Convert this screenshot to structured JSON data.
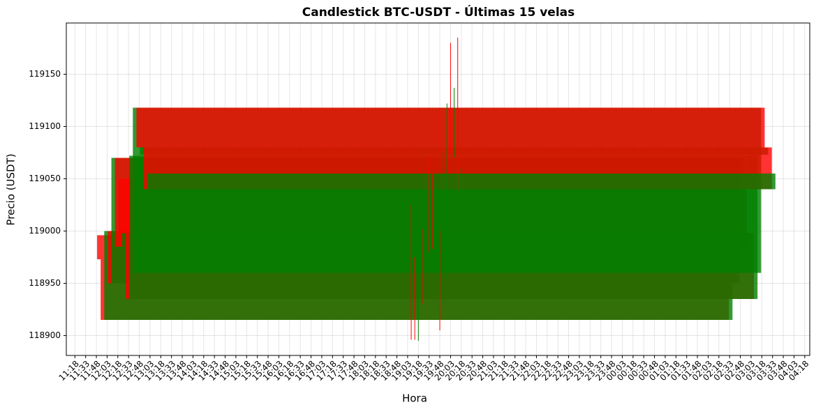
{
  "chart_data": {
    "type": "candlestick",
    "title": "Candlestick BTC-USDT - Últimas 15 velas",
    "xlabel": "Hora",
    "ylabel": "Precio (USDT)",
    "x": [
      "19:08",
      "19:13",
      "19:18",
      "19:23",
      "19:28",
      "19:33",
      "19:38",
      "19:43",
      "19:48",
      "19:53",
      "19:58",
      "20:03",
      "20:08",
      "20:13",
      "20:18"
    ],
    "open": [
      118996,
      118973,
      118915,
      119000,
      118950,
      119070,
      119050,
      118985,
      118998,
      118935,
      118960,
      119118,
      119073,
      119080,
      119040
    ],
    "high": [
      119025,
      118975,
      119002,
      119002,
      119078,
      119072,
      119055,
      119045,
      119000,
      119075,
      119122,
      119180,
      119137,
      119185,
      119060
    ],
    "low": [
      118896,
      118896,
      118895,
      118930,
      118945,
      118980,
      118983,
      118960,
      118905,
      118930,
      118955,
      119075,
      119070,
      119038,
      119038
    ],
    "close": [
      118973,
      118915,
      119000,
      118950,
      119070,
      118985,
      118985,
      118998,
      118935,
      119072,
      119118,
      119080,
      119080,
      119040,
      119055
    ],
    "up_color": "green",
    "down_color": "red",
    "xlim": [
      "11:06",
      "04:25"
    ],
    "xticks": [
      "11:18",
      "11:33",
      "11:48",
      "12:03",
      "12:18",
      "12:33",
      "12:48",
      "13:03",
      "13:18",
      "13:33",
      "13:48",
      "14:03",
      "14:18",
      "14:33",
      "14:48",
      "15:03",
      "15:18",
      "15:33",
      "15:48",
      "16:03",
      "16:18",
      "16:33",
      "16:48",
      "17:03",
      "17:18",
      "17:33",
      "17:48",
      "18:03",
      "18:18",
      "18:33",
      "18:48",
      "19:03",
      "19:18",
      "19:33",
      "19:48",
      "20:03",
      "20:18",
      "20:33",
      "20:48",
      "21:03",
      "21:18",
      "21:33",
      "21:48",
      "22:03",
      "22:18",
      "22:33",
      "22:48",
      "23:03",
      "23:18",
      "23:33",
      "23:48",
      "00:03",
      "00:18",
      "00:33",
      "00:48",
      "01:03",
      "01:18",
      "01:33",
      "01:48",
      "02:03",
      "02:18",
      "02:33",
      "02:48",
      "03:03",
      "03:18",
      "03:33",
      "03:48",
      "04:03",
      "04:18"
    ],
    "ylim": [
      118881,
      119199
    ],
    "yticks": [
      118900,
      118950,
      119000,
      119050,
      119100,
      119150
    ],
    "grid": true
  }
}
